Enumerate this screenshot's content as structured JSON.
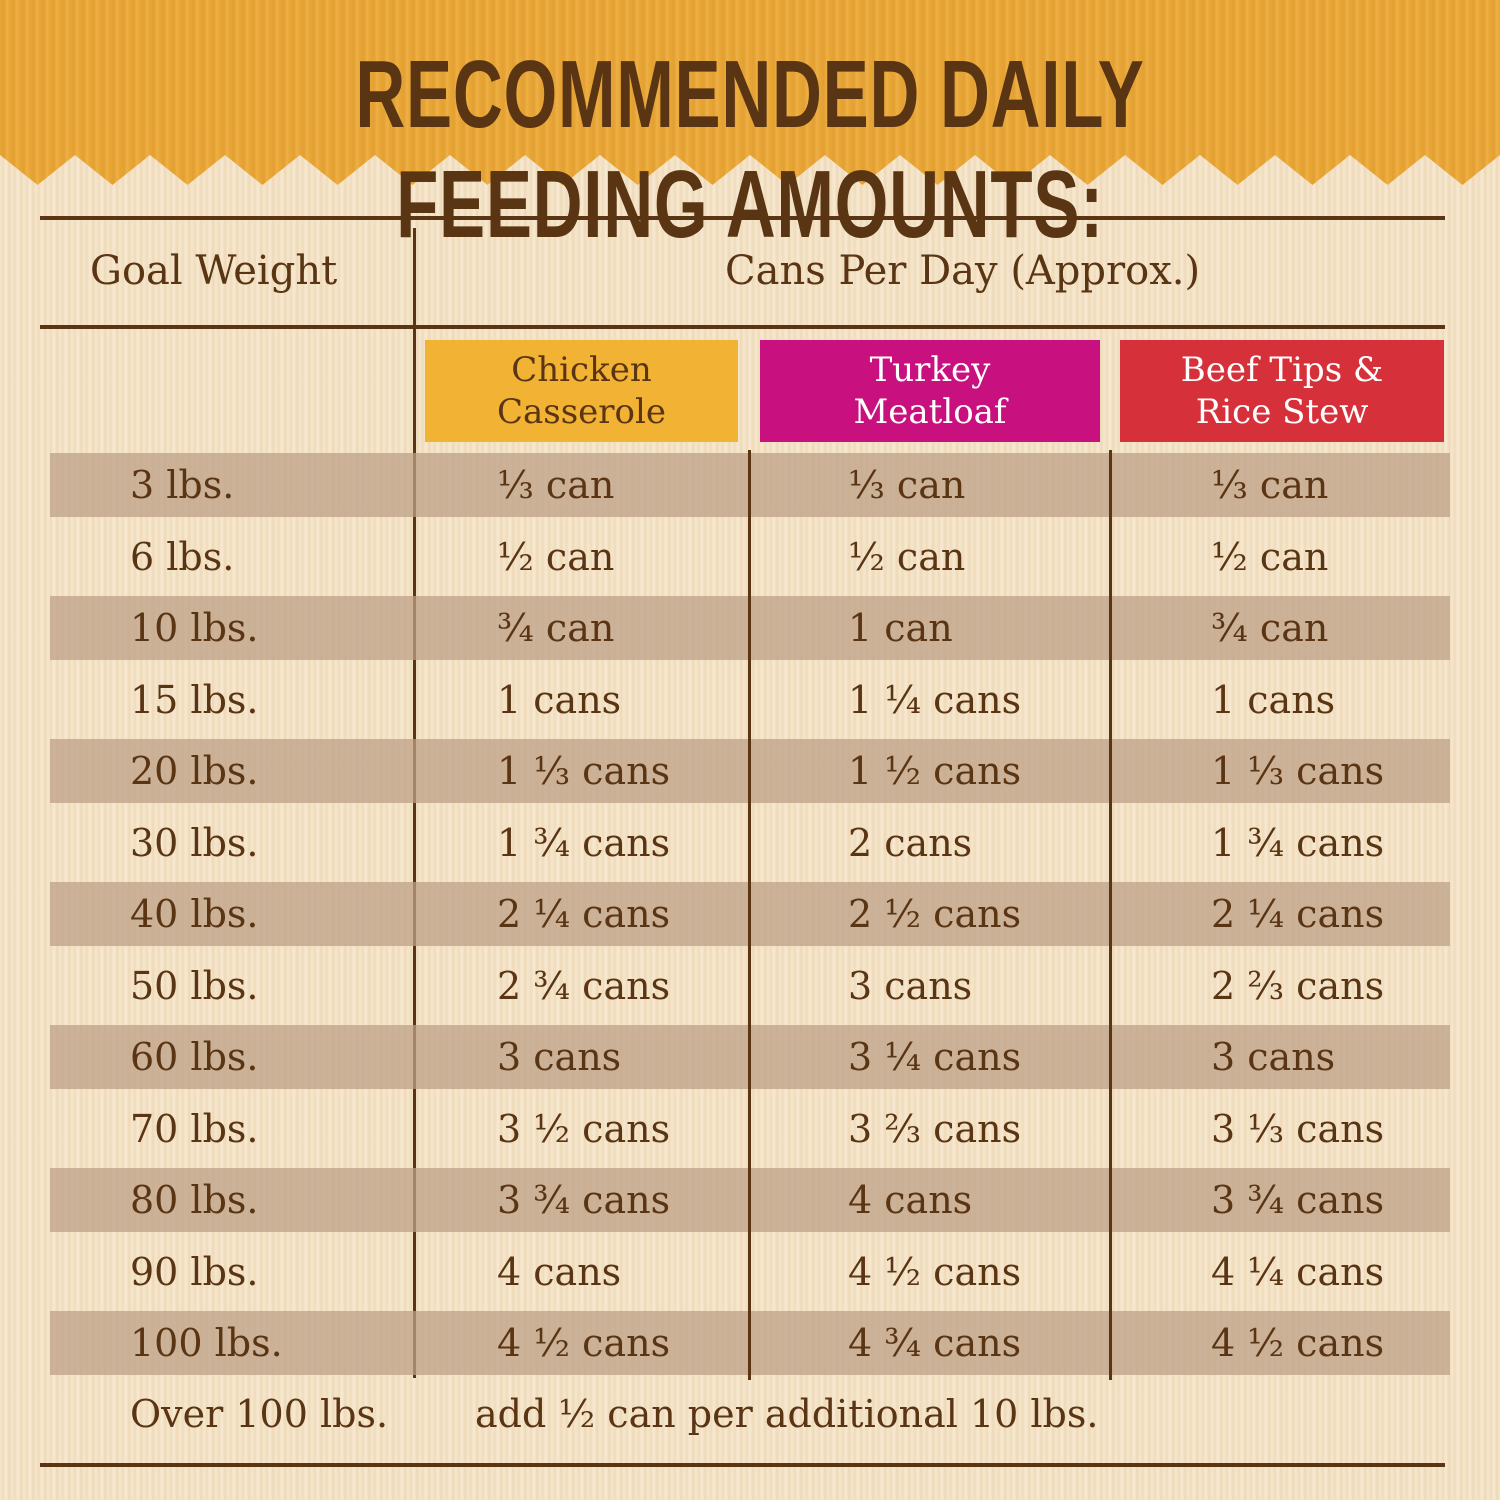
{
  "title": "RECOMMENDED DAILY FEEDING AMOUNTS:",
  "headers": {
    "goal_weight": "Goal Weight",
    "cans_per_day": "Cans Per Day (Approx.)"
  },
  "products": [
    {
      "name": "Chicken Casserole",
      "color": "#f2b233",
      "text_color": "#5a3514"
    },
    {
      "name": "Turkey Meatloaf",
      "color": "#c8107e",
      "text_color": "#ffffff"
    },
    {
      "name": "Beef Tips & Rice Stew",
      "color": "#d6313a",
      "text_color": "#ffffff"
    }
  ],
  "rows": [
    {
      "weight": "3 lbs.",
      "values": [
        "⅓ can",
        "⅓ can",
        "⅓ can"
      ]
    },
    {
      "weight": "6 lbs.",
      "values": [
        "½ can",
        "½ can",
        "½ can"
      ]
    },
    {
      "weight": "10 lbs.",
      "values": [
        "¾ can",
        "1 can",
        "¾ can"
      ]
    },
    {
      "weight": "15 lbs.",
      "values": [
        "1 cans",
        "1 ¼ cans",
        "1 cans"
      ]
    },
    {
      "weight": "20 lbs.",
      "values": [
        "1 ⅓ cans",
        "1 ½ cans",
        "1 ⅓ cans"
      ]
    },
    {
      "weight": "30 lbs.",
      "values": [
        "1 ¾ cans",
        "2 cans",
        "1 ¾ cans"
      ]
    },
    {
      "weight": "40 lbs.",
      "values": [
        "2 ¼ cans",
        "2 ½ cans",
        "2 ¼ cans"
      ]
    },
    {
      "weight": "50 lbs.",
      "values": [
        "2 ¾ cans",
        "3 cans",
        "2 ⅔ cans"
      ]
    },
    {
      "weight": "60 lbs.",
      "values": [
        "3 cans",
        "3 ¼ cans",
        "3 cans"
      ]
    },
    {
      "weight": "70 lbs.",
      "values": [
        "3 ½ cans",
        "3 ⅔ cans",
        "3 ⅓ cans"
      ]
    },
    {
      "weight": "80 lbs.",
      "values": [
        "3 ¾ cans",
        "4 cans",
        "3 ¾ cans"
      ]
    },
    {
      "weight": "90 lbs.",
      "values": [
        "4 cans",
        "4 ½ cans",
        "4 ¼ cans"
      ]
    },
    {
      "weight": "100 lbs.",
      "values": [
        "4 ½ cans",
        "4 ¾ cans",
        "4 ½ cans"
      ]
    }
  ],
  "footer": {
    "weight": "Over 100 lbs.",
    "note": "add ½ can per additional 10 lbs."
  }
}
